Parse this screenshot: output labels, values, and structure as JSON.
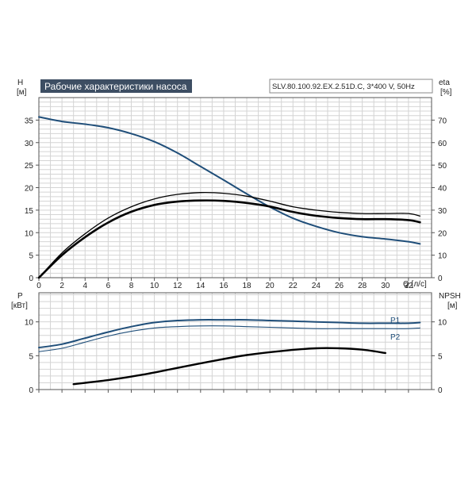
{
  "chart_data": [
    {
      "type": "line",
      "title": "Рабочие характеристики насоса",
      "model_label": "SLV.80.100.92.EX.2.51D.C, 3*400 V, 50Hz",
      "xlabel": "Q [л/с]",
      "xlim": [
        0,
        34
      ],
      "xticks": [
        0,
        2,
        4,
        6,
        8,
        10,
        12,
        14,
        16,
        18,
        20,
        22,
        24,
        26,
        28,
        30,
        32
      ],
      "y_left": {
        "label_line1": "H",
        "label_line2": "[м]",
        "lim": [
          0,
          40
        ],
        "ticks": [
          0,
          5,
          10,
          15,
          20,
          25,
          30,
          35
        ]
      },
      "y_right": {
        "label_line1": "eta",
        "label_line2": "[%]",
        "lim": [
          0,
          80
        ],
        "ticks": [
          0,
          10,
          20,
          30,
          40,
          50,
          60,
          70
        ]
      },
      "grid": true,
      "series": [
        {
          "axis": "left",
          "color": "#1f4e79",
          "width": 2,
          "x": [
            0,
            2,
            4,
            6,
            8,
            10,
            12,
            14,
            16,
            18,
            20,
            22,
            24,
            26,
            28,
            30,
            32,
            33
          ],
          "values": [
            35.7,
            34.7,
            34.1,
            33.3,
            32.0,
            30.2,
            27.7,
            24.7,
            21.7,
            18.6,
            15.7,
            13.2,
            11.4,
            10.0,
            9.1,
            8.6,
            8.0,
            7.5
          ]
        },
        {
          "axis": "right",
          "color": "#000000",
          "width": 1.3,
          "x": [
            0,
            2,
            4,
            6,
            8,
            10,
            12,
            14,
            16,
            18,
            20,
            22,
            24,
            26,
            28,
            30,
            32,
            33
          ],
          "values": [
            0,
            11,
            19.5,
            26.5,
            31.5,
            35,
            37,
            37.8,
            37.5,
            36.2,
            34,
            31.5,
            30,
            29,
            28.5,
            28.5,
            28.5,
            27.4
          ]
        },
        {
          "axis": "right",
          "color": "#000000",
          "width": 2.6,
          "x": [
            0,
            2,
            4,
            6,
            8,
            10,
            12,
            14,
            16,
            18,
            20,
            22,
            24,
            26,
            28,
            30,
            32,
            33
          ],
          "values": [
            0,
            10,
            18,
            24.5,
            29.3,
            32.3,
            33.8,
            34.3,
            34.1,
            33.2,
            31.6,
            29.2,
            27.5,
            26.5,
            26,
            26,
            25.6,
            24.6
          ]
        }
      ]
    },
    {
      "type": "line",
      "xlim": [
        0,
        34
      ],
      "xticks": [
        0,
        2,
        4,
        6,
        8,
        10,
        12,
        14,
        16,
        18,
        20,
        22,
        24,
        26,
        28,
        30,
        32
      ],
      "y_left": {
        "label_line1": "P",
        "label_line2": "[кВт]",
        "lim": [
          0,
          14.3
        ],
        "ticks": [
          0,
          5,
          10
        ]
      },
      "y_right": {
        "label_line1": "NPSH",
        "label_line2": "[м]",
        "lim": [
          0,
          14.3
        ],
        "ticks": [
          0,
          5,
          10
        ]
      },
      "grid": true,
      "series": [
        {
          "name": "P1",
          "axis": "left",
          "color": "#1f4e79",
          "width": 2,
          "x": [
            0,
            2,
            4,
            6,
            8,
            10,
            12,
            14,
            16,
            18,
            20,
            22,
            24,
            26,
            28,
            30,
            32,
            33
          ],
          "values": [
            6.2,
            6.7,
            7.6,
            8.5,
            9.3,
            9.9,
            10.2,
            10.3,
            10.3,
            10.3,
            10.2,
            10.1,
            10.0,
            9.9,
            9.8,
            9.8,
            9.8,
            9.9
          ]
        },
        {
          "name": "P2",
          "axis": "left",
          "color": "#1f4e79",
          "width": 1.1,
          "x": [
            0,
            2,
            4,
            6,
            8,
            10,
            12,
            14,
            16,
            18,
            20,
            22,
            24,
            26,
            28,
            30,
            32,
            33
          ],
          "values": [
            5.6,
            6.1,
            7.0,
            7.9,
            8.6,
            9.1,
            9.3,
            9.4,
            9.4,
            9.3,
            9.2,
            9.1,
            9.0,
            9.0,
            9.0,
            9.0,
            9.0,
            9.1
          ]
        },
        {
          "axis": "right",
          "color": "#000000",
          "width": 2.4,
          "x": [
            3,
            6,
            9,
            12,
            15,
            18,
            21,
            24,
            26,
            28,
            30
          ],
          "values": [
            0.8,
            1.4,
            2.2,
            3.2,
            4.2,
            5.1,
            5.7,
            6.1,
            6.1,
            5.9,
            5.4
          ]
        }
      ]
    }
  ]
}
